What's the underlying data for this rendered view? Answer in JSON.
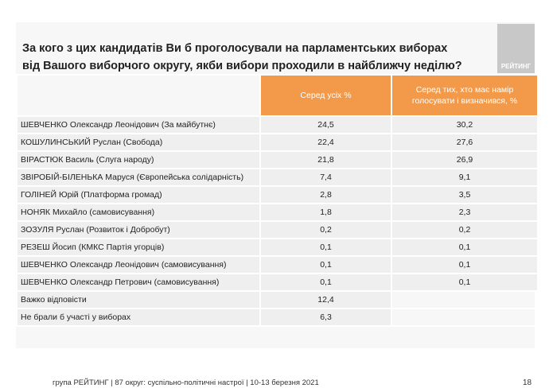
{
  "title": "За кого з цих кандидатів Ви б проголосували на парламентських виборах від Вашого виборчого округу, якби вибори проходили в найближчу неділю?",
  "logo": "РЕЙТИНГ",
  "table": {
    "headers": [
      "Серед усіх %",
      "Серед тих, хто має намір голосувати і визначився, %"
    ],
    "rows": [
      {
        "name": "ШЕВЧЕНКО Олександр Леонідович (За майбутнє)",
        "v1": "24,5",
        "v2": "30,2"
      },
      {
        "name": "КОШУЛИНСЬКИЙ Руслан (Свобода)",
        "v1": "22,4",
        "v2": "27,6"
      },
      {
        "name": "ВІРАСТЮК Василь (Слуга народу)",
        "v1": "21,8",
        "v2": "26,9"
      },
      {
        "name": "ЗВІРОБІЙ-БІЛЕНЬКА Маруся (Європейська солідарність)",
        "v1": "7,4",
        "v2": "9,1"
      },
      {
        "name": "ГОЛІНЕЙ Юрій (Платформа громад)",
        "v1": "2,8",
        "v2": "3,5"
      },
      {
        "name": "НОНЯК Михайло (самовисування)",
        "v1": "1,8",
        "v2": "2,3"
      },
      {
        "name": "ЗОЗУЛЯ Руслан (Розвиток і Добробут)",
        "v1": "0,2",
        "v2": "0,2"
      },
      {
        "name": "РЕЗЕШ Йосип (КМКС Партія угорців)",
        "v1": "0,1",
        "v2": "0,1"
      },
      {
        "name": "ШЕВЧЕНКО Олександр Леонідович (самовисування)",
        "v1": "0,1",
        "v2": "0,1"
      },
      {
        "name": "ШЕВЧЕНКО Олександр Петрович (самовисування)",
        "v1": "0,1",
        "v2": "0,1"
      },
      {
        "name": "Важко відповісти",
        "v1": "12,4"
      },
      {
        "name": "Не брали б участі у виборах",
        "v1": "6,3"
      }
    ]
  },
  "footer": "група РЕЙТИНГ  | 87 округ: суспільно-політичні настрої | 10-13 березня 2021",
  "page": "18",
  "colors": {
    "header": "#f39a4a"
  }
}
